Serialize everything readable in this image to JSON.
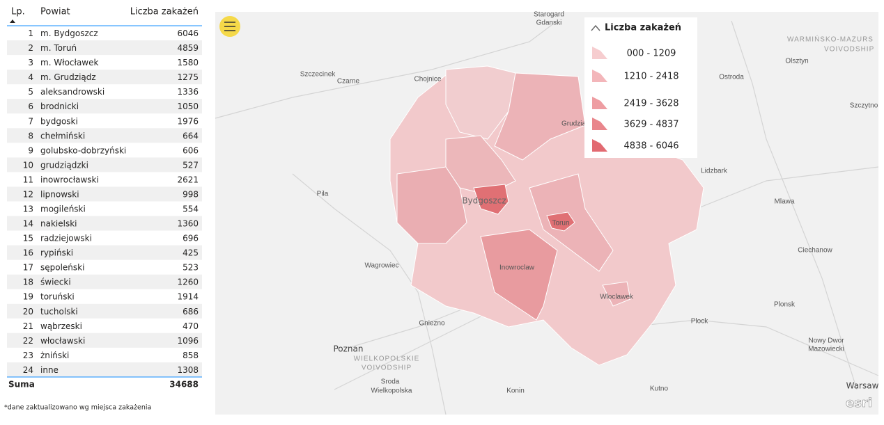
{
  "table": {
    "headers": [
      "Lp.",
      "Powiat",
      "Liczba zakażeń"
    ],
    "rows": [
      [
        1,
        "m. Bydgoszcz",
        6046
      ],
      [
        2,
        "m. Toruń",
        4859
      ],
      [
        3,
        "m. Włocławek",
        1580
      ],
      [
        4,
        "m. Grudziądz",
        1275
      ],
      [
        5,
        "aleksandrowski",
        1336
      ],
      [
        6,
        "brodnicki",
        1050
      ],
      [
        7,
        "bydgoski",
        1976
      ],
      [
        8,
        "chełmiński",
        664
      ],
      [
        9,
        "golubsko-dobrzyński",
        606
      ],
      [
        10,
        "grudziądzki",
        527
      ],
      [
        11,
        "inowrocławski",
        2621
      ],
      [
        12,
        "lipnowski",
        998
      ],
      [
        13,
        "mogileński",
        554
      ],
      [
        14,
        "nakielski",
        1360
      ],
      [
        15,
        "radziejowski",
        696
      ],
      [
        16,
        "rypiński",
        425
      ],
      [
        17,
        "sępoleński",
        523
      ],
      [
        18,
        "świecki",
        1260
      ],
      [
        19,
        "toruński",
        1914
      ],
      [
        20,
        "tucholski",
        686
      ],
      [
        21,
        "wąbrzeski",
        470
      ],
      [
        22,
        "włocławski",
        1096
      ],
      [
        23,
        "żniński",
        858
      ],
      [
        24,
        "inne",
        1308
      ]
    ],
    "total": {
      "label": "Suma",
      "value": 34688
    }
  },
  "footnote": "*dane zaktualizowano wg miejsca zakażenia",
  "legend": {
    "title": "Liczba zakażeń",
    "items": [
      "000 - 1209",
      "1210 - 2418",
      "2419 - 3628",
      "3629 - 4837",
      "4838 - 6046"
    ]
  },
  "map": {
    "labels": [
      "Starogard",
      "Gdanski",
      "WARMIŃSKO-MAZURS",
      "VOIVODSHIP",
      "Olsztyn",
      "Szczytno",
      "Szczecinek",
      "Czarne",
      "Chojnice",
      "Ostroda",
      "Grudziądz",
      "Lidzbark",
      "Pila",
      "Bydgoszcz",
      "Torun",
      "Mlawa",
      "Ciechanow",
      "Wagrowiec",
      "Inowroclaw",
      "Wloclawek",
      "Plock",
      "Plonsk",
      "Gniezno",
      "Nowy Dwor",
      "Mazowiecki",
      "Poznan",
      "WIELKOPOLSKIE",
      "VOIVODSHIP",
      "Sroda",
      "Wielkopolska",
      "Konin",
      "Kutno",
      "Warsaw",
      "esri"
    ]
  }
}
